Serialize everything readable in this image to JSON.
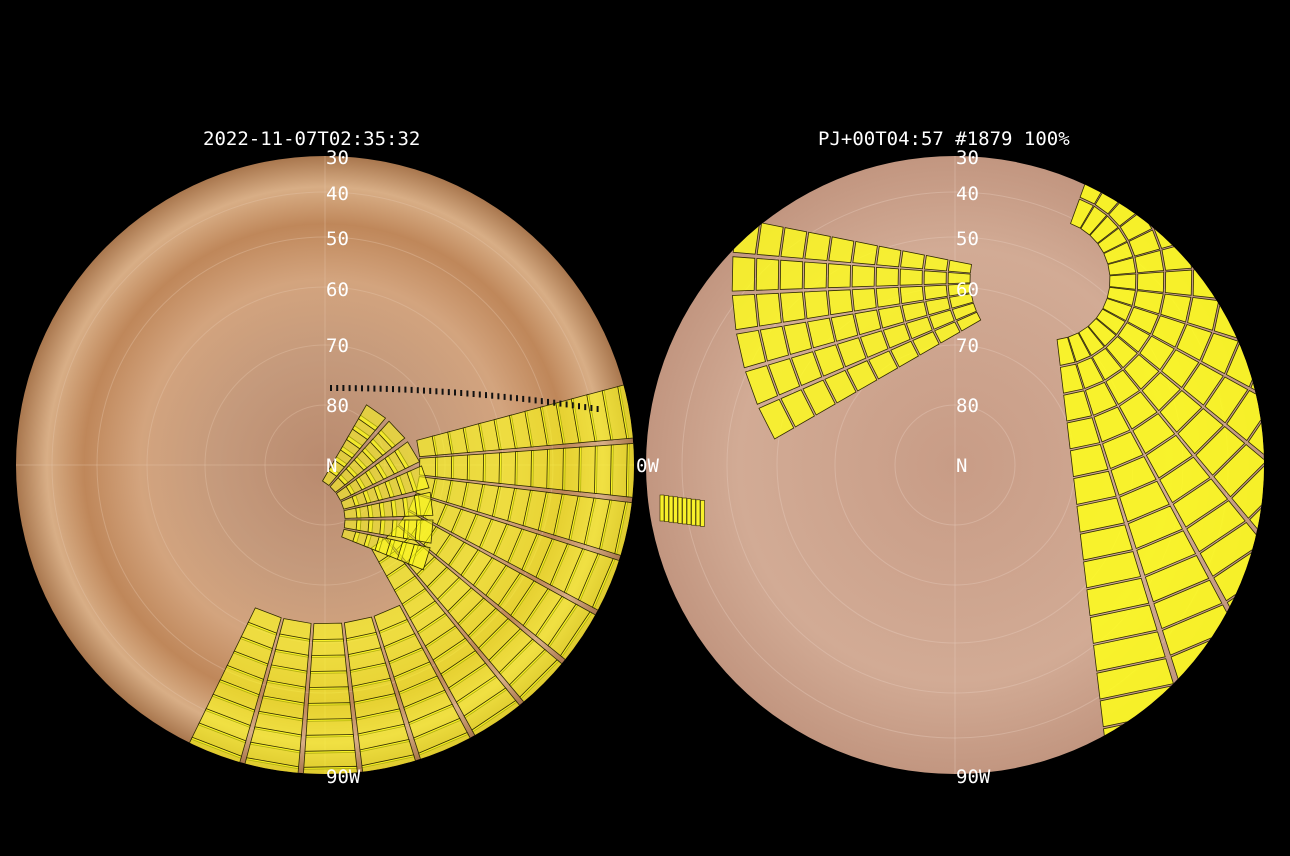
{
  "panels": [
    {
      "id": "left",
      "title": "2022-11-07T02:35:32",
      "latitude_labels": [
        "30",
        "40",
        "50",
        "60",
        "70",
        "80",
        "N"
      ],
      "longitude_labels": [
        "0W",
        "90W"
      ]
    },
    {
      "id": "right",
      "title": "PJ+00T04:57 #1879 100%",
      "latitude_labels": [
        "30",
        "40",
        "50",
        "60",
        "70",
        "80",
        "N"
      ],
      "longitude_labels": [
        "90W"
      ]
    }
  ],
  "colors": {
    "background": "#000000",
    "footprint_fill": "#ffff1a",
    "footprint_edge": "#2f2a00",
    "label": "#ffffff"
  }
}
